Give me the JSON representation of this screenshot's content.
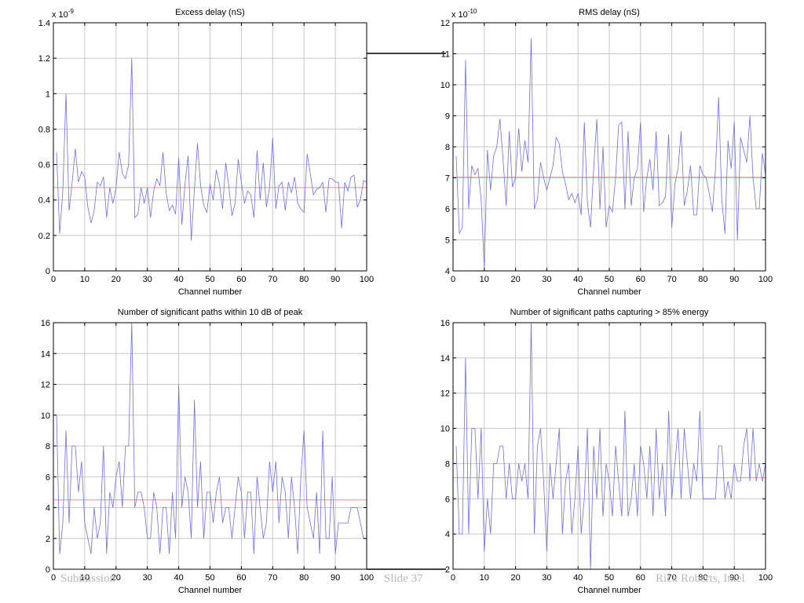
{
  "chart_data": [
    {
      "type": "line",
      "title": "Excess delay (nS)",
      "xlabel": "Channel number",
      "ylabel": "",
      "multiplier": "x 10",
      "exponent": "-9",
      "xlim": [
        0,
        100
      ],
      "ylim": [
        0,
        1.4
      ],
      "xticks": [
        0,
        10,
        20,
        30,
        40,
        50,
        60,
        70,
        80,
        90,
        100
      ],
      "yticks": [
        0,
        0.2,
        0.4,
        0.6,
        0.8,
        1,
        1.2,
        1.4
      ],
      "grid": true,
      "colors": {
        "series": "#6e6ef0",
        "mean": "#f08c8c"
      },
      "mean": 0.47,
      "x_start": 1,
      "values": [
        0.67,
        0.21,
        0.45,
        1.0,
        0.34,
        0.5,
        0.69,
        0.5,
        0.56,
        0.53,
        0.36,
        0.27,
        0.34,
        0.5,
        0.48,
        0.53,
        0.3,
        0.47,
        0.38,
        0.47,
        0.67,
        0.55,
        0.52,
        0.6,
        1.2,
        0.3,
        0.32,
        0.47,
        0.38,
        0.47,
        0.3,
        0.45,
        0.52,
        0.48,
        0.67,
        0.44,
        0.34,
        0.37,
        0.32,
        0.64,
        0.26,
        0.49,
        0.65,
        0.17,
        0.46,
        0.72,
        0.48,
        0.37,
        0.33,
        0.49,
        0.4,
        0.57,
        0.49,
        0.35,
        0.61,
        0.48,
        0.31,
        0.38,
        0.63,
        0.5,
        0.38,
        0.45,
        0.43,
        0.3,
        0.68,
        0.4,
        0.61,
        0.36,
        0.47,
        0.75,
        0.35,
        0.48,
        0.5,
        0.34,
        0.5,
        0.44,
        0.53,
        0.38,
        0.35,
        0.33,
        0.66,
        0.55,
        0.43,
        0.46,
        0.47,
        0.5,
        0.33,
        0.52,
        0.52,
        0.5,
        0.5,
        0.24,
        0.5,
        0.45,
        0.53,
        0.54,
        0.36,
        0.4,
        0.51,
        0.5
      ]
    },
    {
      "type": "line",
      "title": "RMS delay (nS)",
      "xlabel": "Channel number",
      "ylabel": "",
      "multiplier": "x 10",
      "exponent": "-10",
      "xlim": [
        0,
        100
      ],
      "ylim": [
        4,
        12
      ],
      "xticks": [
        0,
        10,
        20,
        30,
        40,
        50,
        60,
        70,
        80,
        90,
        100
      ],
      "yticks": [
        4,
        5,
        6,
        7,
        8,
        9,
        10,
        11,
        12
      ],
      "grid": true,
      "colors": {
        "series": "#6e6ef0",
        "mean": "#f08c8c"
      },
      "mean": 7.02,
      "x_start": 1,
      "values": [
        7.7,
        5.2,
        5.4,
        10.8,
        6.0,
        7.4,
        7.1,
        7.3,
        6.3,
        4.1,
        7.9,
        6.6,
        7.7,
        8.0,
        8.9,
        7.6,
        6.1,
        8.5,
        6.7,
        7.0,
        8.6,
        7.2,
        8.2,
        7.5,
        11.5,
        6.0,
        6.3,
        7.5,
        7.0,
        6.6,
        7.0,
        7.4,
        8.3,
        8.1,
        7.2,
        6.8,
        6.3,
        6.5,
        6.2,
        6.5,
        5.8,
        8.8,
        6.2,
        5.4,
        7.3,
        8.9,
        6.0,
        8.0,
        5.4,
        6.1,
        5.9,
        7.0,
        8.7,
        8.8,
        6.0,
        8.5,
        6.1,
        7.0,
        7.3,
        8.8,
        5.9,
        7.0,
        7.6,
        6.6,
        8.5,
        6.1,
        6.2,
        6.4,
        8.4,
        5.4,
        6.8,
        7.3,
        8.5,
        6.1,
        6.6,
        7.4,
        5.8,
        5.8,
        7.4,
        7.1,
        7.0,
        6.5,
        5.9,
        7.3,
        9.6,
        6.3,
        5.2,
        8.2,
        7.3,
        8.8,
        5.0,
        8.3,
        7.9,
        7.5,
        9.0,
        7.0,
        6.0,
        6.0,
        7.8,
        7.1
      ]
    },
    {
      "type": "line",
      "title": "Number of significant paths within 10 dB of peak",
      "xlabel": "Channel number",
      "ylabel": "",
      "xlim": [
        0,
        100
      ],
      "ylim": [
        0,
        16
      ],
      "xticks": [
        0,
        10,
        20,
        30,
        40,
        50,
        60,
        70,
        80,
        90,
        100
      ],
      "yticks": [
        0,
        2,
        4,
        6,
        8,
        10,
        12,
        14,
        16
      ],
      "grid": true,
      "colors": {
        "series": "#6e6ef0",
        "mean": "#f08c8c"
      },
      "mean": 4.5,
      "x_start": 1,
      "values": [
        10,
        1,
        3,
        9,
        3,
        8,
        8,
        5,
        7,
        3,
        2,
        1,
        4,
        2,
        3,
        8,
        1,
        5,
        4,
        6,
        7,
        4,
        8,
        8,
        16,
        4,
        5,
        5,
        4,
        2,
        2,
        5,
        4,
        1,
        4,
        4,
        1,
        5,
        2,
        12,
        4,
        6,
        5,
        2,
        11,
        4,
        7,
        2,
        5,
        5,
        3,
        5,
        6,
        3,
        4,
        4,
        2,
        4,
        6,
        5,
        2,
        5,
        5,
        1,
        6,
        4,
        2,
        3,
        7,
        5,
        7,
        3,
        6,
        5,
        2,
        6,
        4,
        1,
        6,
        9,
        4,
        3,
        2,
        5,
        1,
        9,
        2,
        2,
        6,
        1,
        3,
        3,
        3,
        3,
        4,
        4,
        4,
        3,
        2,
        2
      ]
    },
    {
      "type": "line",
      "title": "Number of significant paths capturing > 85% energy",
      "xlabel": "Channel number",
      "ylabel": "",
      "xlim": [
        0,
        100
      ],
      "ylim": [
        2,
        16
      ],
      "xticks": [
        0,
        10,
        20,
        30,
        40,
        50,
        60,
        70,
        80,
        90,
        100
      ],
      "yticks": [
        2,
        4,
        6,
        8,
        10,
        12,
        14,
        16
      ],
      "grid": true,
      "colors": {
        "series": "#6e6ef0",
        "mean": "#f08c8c"
      },
      "mean": 7.2,
      "x_start": 1,
      "values": [
        9,
        4,
        4,
        14,
        4,
        10,
        10,
        6,
        10,
        3,
        6,
        4,
        8,
        8,
        9,
        9,
        6,
        8,
        6,
        6,
        8,
        7,
        8,
        6,
        16,
        4,
        9,
        10,
        7,
        3,
        8,
        6,
        8,
        10,
        4,
        7,
        8,
        4,
        6,
        9,
        4,
        6,
        10,
        2,
        9,
        6,
        10,
        5,
        8,
        7,
        5,
        9,
        7,
        5,
        11,
        5,
        6,
        8,
        5,
        9,
        8,
        6,
        9,
        5,
        10,
        6,
        8,
        5,
        11,
        6,
        8,
        10,
        6,
        10,
        8,
        6,
        8,
        7,
        11,
        6,
        6,
        6,
        6,
        6,
        9,
        9,
        6,
        7,
        6,
        8,
        7,
        7,
        9,
        10,
        7,
        10,
        7,
        8,
        7,
        8
      ]
    }
  ],
  "footer": {
    "left": "Submission",
    "center": "Slide 37",
    "right": "Rick Roberts, Intel"
  }
}
